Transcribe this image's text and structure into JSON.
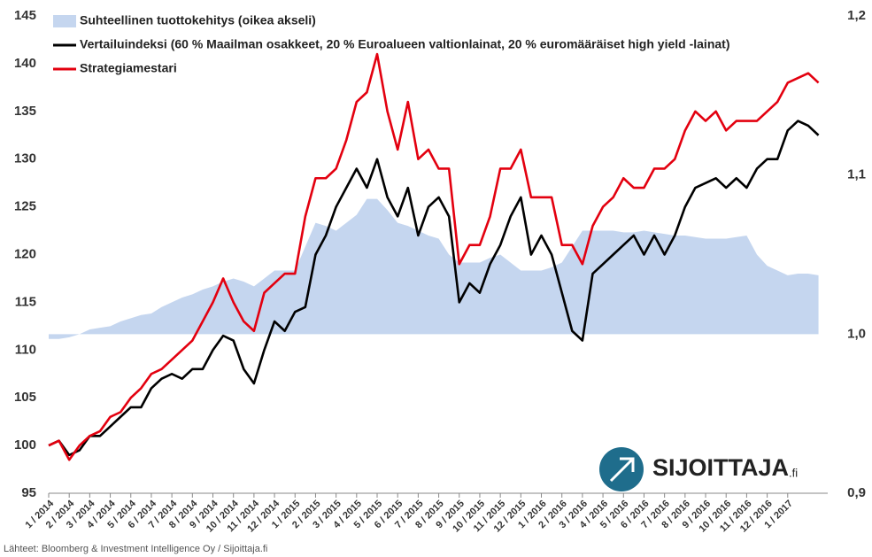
{
  "chart_data": {
    "type": "line",
    "categories": [
      "1 / 2014",
      null,
      "2 / 2014",
      null,
      "3 / 2014",
      null,
      "4 / 2014",
      null,
      "5 / 2014",
      null,
      "6 / 2014",
      null,
      "7 / 2014",
      null,
      "8 / 2014",
      null,
      "9 / 2014",
      null,
      "10 / 2014",
      null,
      "11 / 2014",
      null,
      "12 / 2014",
      null,
      "1 / 2015",
      null,
      "2 / 2015",
      null,
      "3 / 2015",
      null,
      "4 / 2015",
      null,
      "5 / 2015",
      null,
      "6 / 2015",
      null,
      "7 / 2015",
      null,
      "8 / 2015",
      null,
      "9 / 2015",
      null,
      "10 / 2015",
      null,
      "11 / 2015",
      null,
      "12 / 2015",
      null,
      "1 / 2016",
      null,
      "2 / 2016",
      null,
      "3 / 2016",
      null,
      "4 / 2016",
      null,
      "5 / 2016",
      null,
      "6 / 2016",
      null,
      "7 / 2016",
      null,
      "8 / 2016",
      null,
      "9 / 2016",
      null,
      "10 / 2016",
      null,
      "11 / 2016",
      null,
      "12 / 2016",
      null,
      "1 / 2017",
      null,
      null,
      null
    ],
    "series": [
      {
        "name": "Suhteellinen tuottokehitys (oikea akseli)",
        "kind": "area",
        "axis": "y2",
        "fill_to": 1.0,
        "color": "#c5d6ef",
        "values": [
          0.997,
          0.997,
          0.998,
          1.0,
          1.003,
          1.004,
          1.005,
          1.008,
          1.01,
          1.012,
          1.013,
          1.017,
          1.02,
          1.023,
          1.025,
          1.028,
          1.03,
          1.033,
          1.035,
          1.033,
          1.03,
          1.035,
          1.04,
          1.04,
          1.04,
          1.055,
          1.07,
          1.068,
          1.065,
          1.07,
          1.075,
          1.085,
          1.085,
          1.078,
          1.07,
          1.068,
          1.065,
          1.062,
          1.06,
          1.05,
          1.045,
          1.045,
          1.045,
          1.048,
          1.05,
          1.045,
          1.04,
          1.04,
          1.04,
          1.042,
          1.045,
          1.055,
          1.065,
          1.065,
          1.065,
          1.065,
          1.064,
          1.064,
          1.065,
          1.064,
          1.063,
          1.062,
          1.062,
          1.061,
          1.06,
          1.06,
          1.06,
          1.061,
          1.062,
          1.05,
          1.043,
          1.04,
          1.037,
          1.038,
          1.038,
          1.037
        ]
      },
      {
        "name": "Vertailuindeksi (60 % Maailman osakkeet, 20 % Euroalueen valtionlainat, 20 % euromääräiset high yield -lainat)",
        "kind": "line",
        "color": "#000000",
        "values": [
          100,
          100.5,
          99,
          99.5,
          101,
          101,
          102,
          103,
          104,
          104,
          106,
          107,
          107.5,
          107,
          108,
          108,
          110,
          111.5,
          111,
          108,
          106.5,
          110,
          113,
          112,
          114,
          114.5,
          120,
          122,
          125,
          127,
          129,
          127,
          130,
          126,
          124,
          127,
          122,
          125,
          126,
          124,
          115,
          117,
          116,
          119,
          121,
          124,
          126,
          120,
          122,
          120,
          116,
          112,
          111,
          118,
          119,
          120,
          121,
          122,
          120,
          122,
          120,
          122,
          125,
          127,
          127.5,
          128,
          127,
          128,
          127,
          129,
          130,
          130,
          133,
          134,
          133.5,
          132.5
        ]
      },
      {
        "name": "Strategiamestari",
        "kind": "line",
        "color": "#e3000f",
        "values": [
          100,
          100.5,
          98.5,
          100,
          101,
          101.5,
          103,
          103.5,
          105,
          106,
          107.5,
          108,
          109,
          110,
          111,
          113,
          115,
          117.5,
          115,
          113,
          112,
          116,
          117,
          118,
          118,
          124,
          128,
          128,
          129,
          132,
          136,
          137,
          141,
          135,
          131,
          136,
          130,
          131,
          129,
          129,
          119,
          121,
          121,
          124,
          129,
          129,
          131,
          126,
          126,
          126,
          121,
          121,
          119,
          123,
          125,
          126,
          128,
          127,
          127,
          129,
          129,
          130,
          133,
          135,
          134,
          135,
          133,
          134,
          134,
          134,
          135,
          136,
          138,
          138.5,
          139,
          138
        ]
      }
    ],
    "ylim": [
      95,
      145
    ],
    "yticks": [
      95,
      100,
      105,
      110,
      115,
      120,
      125,
      130,
      135,
      140,
      145
    ],
    "y2lim": [
      0.9,
      1.2
    ],
    "y2ticks": [
      {
        "value": 0.9,
        "label": "0,9"
      },
      {
        "value": 1.0,
        "label": "1,0"
      },
      {
        "value": 1.1,
        "label": "1,1"
      },
      {
        "value": 1.2,
        "label": "1,2"
      }
    ],
    "grid": false,
    "legend": "top-left"
  },
  "source": "Lähteet: Bloomberg & Investment Intelligence Oy / Sijoittaja.fi",
  "logo": {
    "name": "SIJOITTAJA",
    "suffix": ".fi"
  }
}
